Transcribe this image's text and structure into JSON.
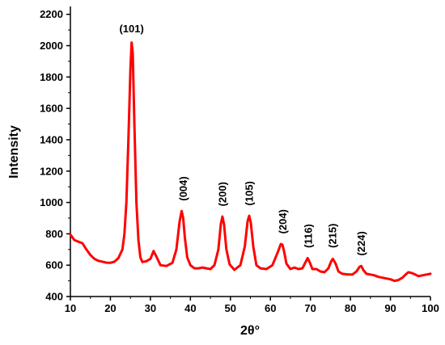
{
  "chart_data": {
    "type": "line",
    "xlabel": "2θ°",
    "ylabel": "Intensity",
    "xlim": [
      10,
      100
    ],
    "ylim": [
      400,
      2250
    ],
    "x_ticks": [
      10,
      20,
      30,
      40,
      50,
      60,
      70,
      80,
      90,
      100
    ],
    "y_ticks": [
      400,
      600,
      800,
      1000,
      1200,
      1400,
      1600,
      1800,
      2000,
      2200
    ],
    "grid": false,
    "line_color": "#ff0000",
    "series": [
      {
        "x": [
          10,
          11,
          12,
          13,
          14,
          15,
          16,
          17,
          18,
          19,
          20,
          21,
          22,
          23,
          23.5,
          24,
          24.5,
          25,
          25.3,
          25.6,
          26,
          26.5,
          27,
          27.5,
          28,
          29,
          30,
          30.8,
          31.5,
          32.5,
          34,
          35.5,
          36.5,
          37.3,
          37.8,
          38.2,
          38.6,
          39.2,
          40,
          41,
          42,
          43,
          44,
          45,
          46,
          47,
          47.6,
          48,
          48.4,
          49,
          49.8,
          51,
          52.5,
          53.6,
          54.3,
          54.7,
          55.1,
          55.7,
          56.5,
          57.5,
          59,
          60.5,
          61.8,
          62.6,
          63,
          63.4,
          64,
          65,
          66,
          67,
          68,
          68.8,
          69.3,
          69.8,
          70.5,
          71.5,
          72.5,
          73.5,
          74.5,
          75.2,
          75.6,
          76.3,
          77,
          78,
          79.5,
          80.5,
          81.5,
          82.3,
          82.7,
          83.2,
          84,
          85,
          86,
          87,
          88,
          89,
          90,
          91,
          92,
          93,
          93.8,
          94.5,
          95.3,
          96.2,
          97,
          98,
          99,
          100
        ],
        "y": [
          795,
          760,
          750,
          740,
          700,
          665,
          640,
          628,
          622,
          616,
          615,
          622,
          645,
          700,
          800,
          1000,
          1400,
          1850,
          2020,
          1950,
          1500,
          1000,
          760,
          650,
          620,
          625,
          640,
          690,
          655,
          600,
          595,
          615,
          700,
          880,
          945,
          900,
          780,
          650,
          600,
          580,
          580,
          585,
          580,
          575,
          600,
          700,
          860,
          910,
          860,
          700,
          605,
          570,
          600,
          720,
          880,
          915,
          870,
          720,
          600,
          580,
          575,
          600,
          680,
          735,
          730,
          690,
          610,
          575,
          585,
          575,
          580,
          620,
          645,
          620,
          575,
          575,
          560,
          555,
          580,
          625,
          640,
          610,
          560,
          545,
          540,
          540,
          560,
          590,
          595,
          570,
          545,
          540,
          535,
          525,
          520,
          515,
          510,
          500,
          505,
          520,
          540,
          555,
          550,
          540,
          530,
          535,
          540,
          545
        ]
      }
    ],
    "annotations": [
      {
        "text": "(101)",
        "x": 25.3,
        "y": 2085
      },
      {
        "text": "(004)",
        "x": 38.3,
        "y": 1010
      },
      {
        "text": "(200)",
        "x": 48.1,
        "y": 975
      },
      {
        "text": "(105)",
        "x": 54.8,
        "y": 980
      },
      {
        "text": "(204)",
        "x": 63.2,
        "y": 800
      },
      {
        "text": "(116)",
        "x": 69.6,
        "y": 710
      },
      {
        "text": "(215)",
        "x": 75.6,
        "y": 710
      },
      {
        "text": "(224)",
        "x": 82.8,
        "y": 660
      }
    ]
  }
}
